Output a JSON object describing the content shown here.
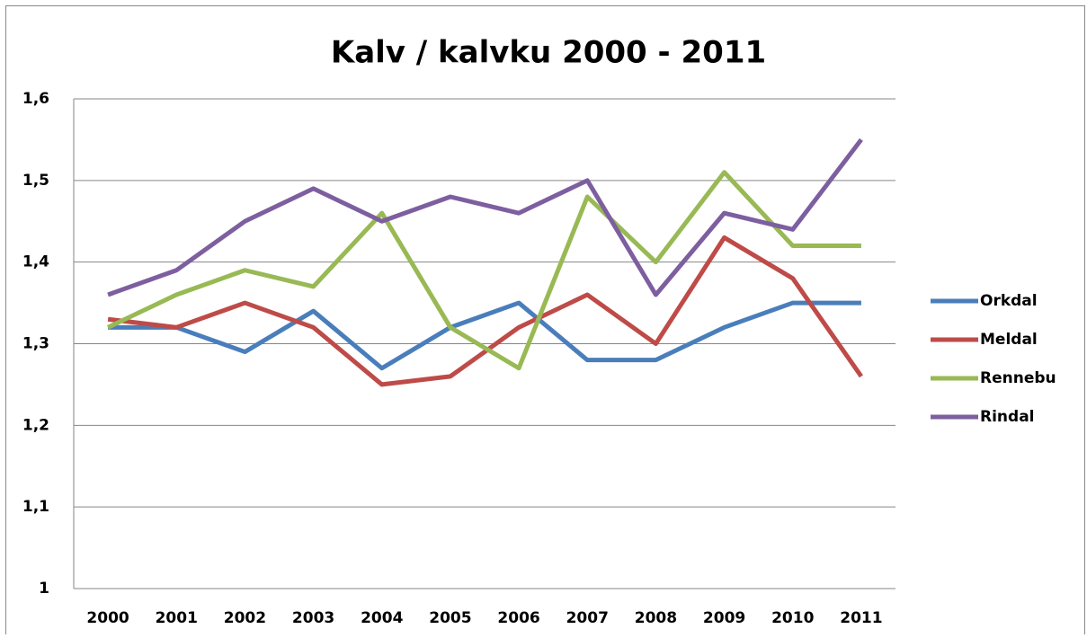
{
  "chart_data": {
    "type": "line",
    "title": "Kalv / kalvku 2000 - 2011",
    "categories": [
      "2000",
      "2001",
      "2002",
      "2003",
      "2004",
      "2005",
      "2006",
      "2007",
      "2008",
      "2009",
      "2010",
      "2011"
    ],
    "series": [
      {
        "name": "Orkdal",
        "color": "#4a7ebb",
        "values": [
          1.32,
          1.32,
          1.29,
          1.34,
          1.27,
          1.32,
          1.35,
          1.28,
          1.28,
          1.32,
          1.35,
          1.35
        ]
      },
      {
        "name": "Meldal",
        "color": "#be4b48",
        "values": [
          1.33,
          1.32,
          1.35,
          1.32,
          1.25,
          1.26,
          1.32,
          1.36,
          1.3,
          1.43,
          1.38,
          1.26
        ]
      },
      {
        "name": "Rennebu",
        "color": "#98b954",
        "values": [
          1.32,
          1.36,
          1.39,
          1.37,
          1.46,
          1.32,
          1.27,
          1.48,
          1.4,
          1.51,
          1.42,
          1.42
        ]
      },
      {
        "name": "Rindal",
        "color": "#7d5fa0",
        "values": [
          1.36,
          1.39,
          1.45,
          1.49,
          1.45,
          1.48,
          1.46,
          1.5,
          1.36,
          1.46,
          1.44,
          1.55
        ]
      }
    ],
    "ylim": [
      1,
      1.6
    ],
    "yticks": [
      1,
      {
        "value": 1.1,
        "label": "1,1"
      },
      {
        "value": 1.2,
        "label": "1,2"
      },
      {
        "value": 1.3,
        "label": "1,3"
      },
      {
        "value": 1.4,
        "label": "1,4"
      },
      {
        "value": 1.5,
        "label": "1,5"
      },
      {
        "value": 1.6,
        "label": "1,6"
      }
    ],
    "grid": true,
    "legend": "right"
  }
}
